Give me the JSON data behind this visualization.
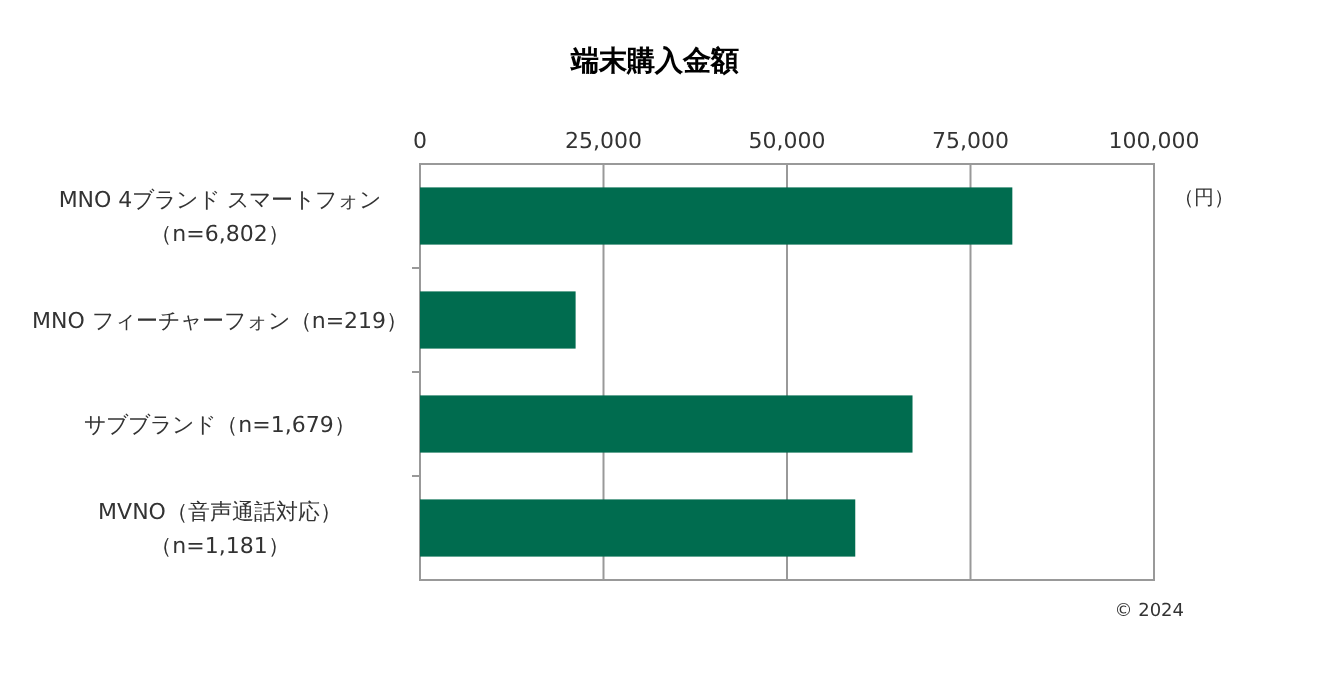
{
  "chart_data": {
    "type": "bar",
    "orientation": "horizontal",
    "title": "端末購入金額",
    "xlabel": "（円）",
    "categories": [
      "MNO 4ブランド スマートフォン（n=6,802）",
      "MNO フィーチャーフォン（n=219）",
      "サブブランド（n=1,679）",
      "MVNO（音声通話対応）（n=1,181）"
    ],
    "values": [
      80700,
      21200,
      67100,
      59300
    ],
    "color": "#006c4f",
    "xlim": [
      0,
      100000
    ],
    "xticks": [
      {
        "value": 0,
        "label": "0"
      },
      {
        "value": 25000,
        "label": "25,000"
      },
      {
        "value": 50000,
        "label": "50,000"
      },
      {
        "value": 75000,
        "label": "75,000"
      },
      {
        "value": 100000,
        "label": "100,000"
      }
    ],
    "grid": "x",
    "annotations": [
      "© 2024"
    ]
  }
}
